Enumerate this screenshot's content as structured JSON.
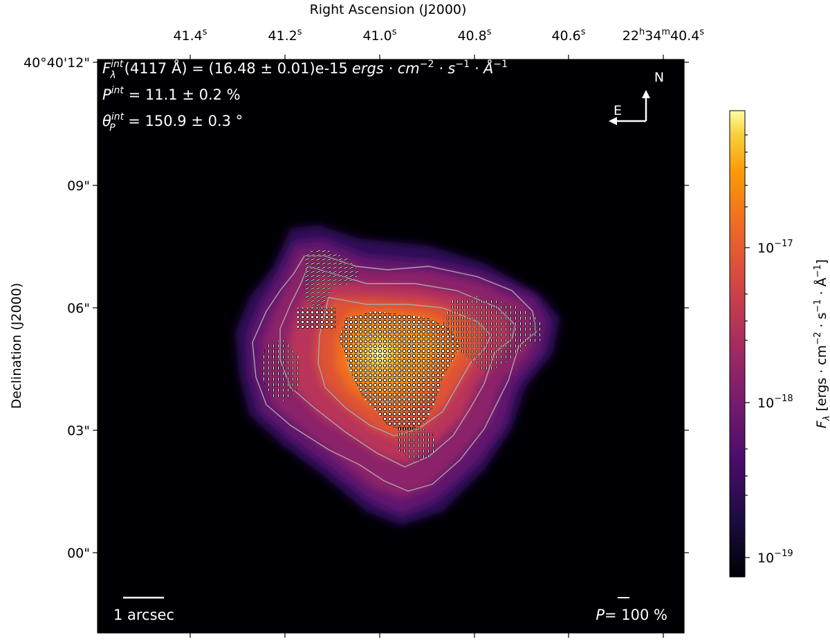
{
  "chart_data": {
    "type": "heatmap",
    "title": "",
    "xlabel": "Right Ascension (J2000)",
    "ylabel": "Declination (J2000)",
    "x_ticks": [
      {
        "main": "41.4",
        "sup": "s"
      },
      {
        "main": "41.2",
        "sup": "s"
      },
      {
        "main": "41.0",
        "sup": "s"
      },
      {
        "main": "40.8",
        "sup": "s"
      },
      {
        "main": "40.6",
        "sup": "s"
      },
      {
        "main": "22",
        "sup": "h",
        "main2": "34",
        "sup2": "m",
        "main3": "40.4",
        "sup3": "s"
      }
    ],
    "y_ticks": [
      "40°40'12\"",
      "09\"",
      "06\"",
      "03\"",
      "00\""
    ],
    "colorbar": {
      "label_main": "F",
      "label_sub": "λ",
      "label_rest": " [ergs · cm",
      "label_exp1": "−2",
      "label_mid": " · s",
      "label_exp2": "−1",
      "label_mid2": " · Å",
      "label_exp3": "−1",
      "label_end": "]",
      "scale": "log",
      "colormap": "inferno",
      "range": [
        8e-20,
        8e-17
      ],
      "ticks": [
        {
          "base": "10",
          "exp": "−17",
          "value": 1e-17
        },
        {
          "base": "10",
          "exp": "−18",
          "value": 1e-18
        },
        {
          "base": "10",
          "exp": "−19",
          "value": 1e-19
        }
      ]
    },
    "annotations": {
      "flux_line": "(4117 Å) = (16.48 ± 0.01)e-15",
      "flux_units": "ergs · cm",
      "flux_sym": "F",
      "flux_sup": "int",
      "flux_sub": "λ",
      "pol_sym": "P",
      "pol_sup": "int",
      "pol_value": " = 11.1 ± 0.2 %",
      "angle_sym": "θ",
      "angle_sup": "int",
      "angle_sub": "P",
      "angle_value": " = 150.9 ± 0.3 °",
      "compass_n": "N",
      "compass_e": "E",
      "scalebar_label": "1 arcsec",
      "pol_scale_label": "P",
      "pol_scale_value": "= 100 %"
    },
    "intensity_peak": {
      "ra": "22h34m40.97s",
      "dec": "40°40'04.8\""
    },
    "polarization_map": "polarization vectors overlaid, dense in SE and NW lobes"
  },
  "colors": {
    "background": "#000004",
    "contour": "#a8a8a8",
    "vector": "#ffffff",
    "vector_edge": "#000000",
    "annotation_text": "#ffffff"
  }
}
